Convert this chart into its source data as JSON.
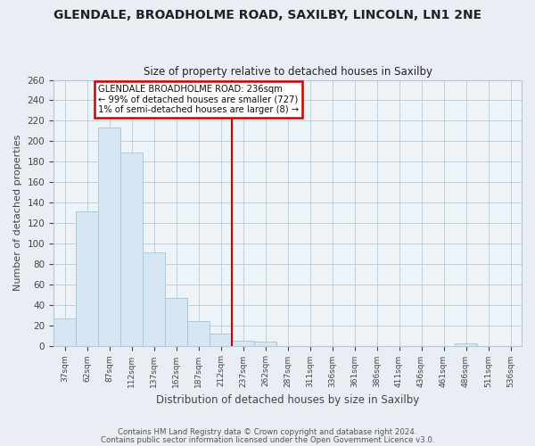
{
  "title": "GLENDALE, BROADHOLME ROAD, SAXILBY, LINCOLN, LN1 2NE",
  "subtitle": "Size of property relative to detached houses in Saxilby",
  "xlabel": "Distribution of detached houses by size in Saxilby",
  "ylabel": "Number of detached properties",
  "bar_labels": [
    "37sqm",
    "62sqm",
    "87sqm",
    "112sqm",
    "137sqm",
    "162sqm",
    "187sqm",
    "212sqm",
    "237sqm",
    "262sqm",
    "287sqm",
    "311sqm",
    "336sqm",
    "361sqm",
    "386sqm",
    "411sqm",
    "436sqm",
    "461sqm",
    "486sqm",
    "511sqm",
    "536sqm"
  ],
  "bar_values": [
    27,
    131,
    213,
    189,
    91,
    47,
    24,
    12,
    5,
    4,
    0,
    0,
    0,
    0,
    0,
    0,
    0,
    0,
    2,
    0,
    0
  ],
  "bar_color": "#d6e6f2",
  "bar_edge_color": "#a8c8e0",
  "highlight_index": 8,
  "highlight_color": "#cc0000",
  "annotation_title": "GLENDALE BROADHOLME ROAD: 236sqm",
  "annotation_line1": "← 99% of detached houses are smaller (727)",
  "annotation_line2": "1% of semi-detached houses are larger (8) →",
  "annotation_box_color": "#ffffff",
  "annotation_box_edge": "#cc0000",
  "ylim": [
    0,
    260
  ],
  "yticks": [
    0,
    20,
    40,
    60,
    80,
    100,
    120,
    140,
    160,
    180,
    200,
    220,
    240,
    260
  ],
  "footer1": "Contains HM Land Registry data © Crown copyright and database right 2024.",
  "footer2": "Contains public sector information licensed under the Open Government Licence v3.0.",
  "bg_color": "#e8eef4",
  "plot_bg_color": "#eef3f8",
  "grid_color": "#b8c8d8",
  "title_color": "#222222",
  "label_color": "#444444"
}
